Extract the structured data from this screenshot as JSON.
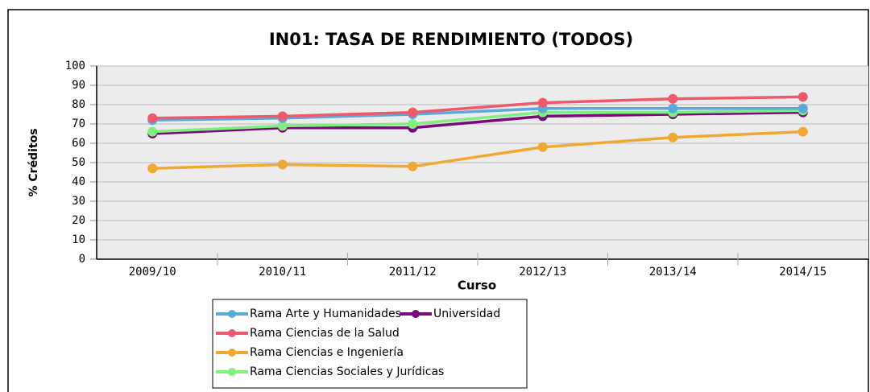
{
  "chart_data": {
    "type": "line",
    "title": "IN01: TASA DE RENDIMIENTO (TODOS)",
    "x_label": "Curso",
    "y_label": "% Créditos",
    "categories": [
      "2009/10",
      "2010/11",
      "2011/12",
      "2012/13",
      "2013/14",
      "2014/15"
    ],
    "series": [
      {
        "name": "Rama Arte y Humanidades",
        "color": "#5aaade",
        "values": [
          72,
          73,
          75,
          78,
          78,
          78
        ]
      },
      {
        "name": "Rama Ciencias de la Salud",
        "color": "#ee5a6a",
        "values": [
          73,
          74,
          76,
          81,
          83,
          84
        ]
      },
      {
        "name": "Rama Ciencias e Ingeniería",
        "color": "#f0a830",
        "values": [
          47,
          49,
          48,
          58,
          63,
          66
        ]
      },
      {
        "name": "Rama Ciencias Sociales y Jurídicas",
        "color": "#7ef07e",
        "values": [
          66,
          69,
          70,
          76,
          76,
          77
        ]
      },
      {
        "name": "Universidad",
        "color": "#7a0a7a",
        "values": [
          65,
          68,
          68,
          74,
          75,
          76
        ]
      }
    ],
    "ylim": [
      0,
      100
    ],
    "yticks": [
      0,
      10,
      20,
      30,
      40,
      50,
      60,
      70,
      80,
      90,
      100
    ],
    "grid": true
  }
}
